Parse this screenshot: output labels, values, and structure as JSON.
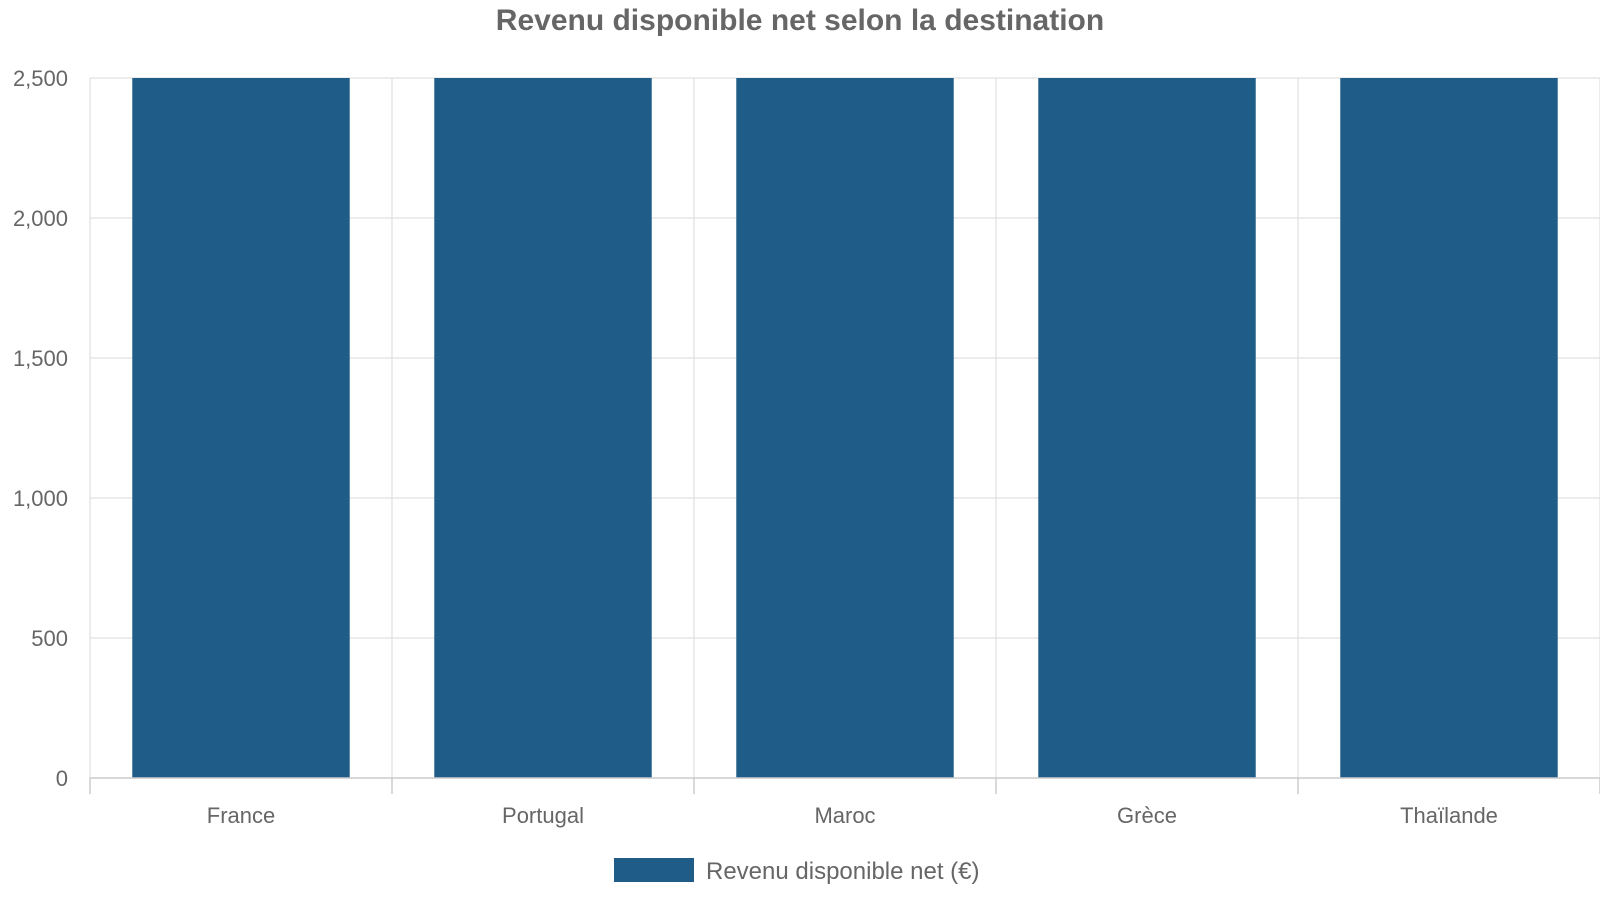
{
  "chart_data": {
    "type": "bar",
    "title": "Revenu disponible net selon la destination",
    "categories": [
      "France",
      "Portugal",
      "Maroc",
      "Grèce",
      "Thaïlande"
    ],
    "series": [
      {
        "name": "Revenu disponible net (€)",
        "values": [
          2500,
          2500,
          2500,
          2500,
          2500
        ],
        "color": "#1f5c87"
      }
    ],
    "ylim": [
      0,
      2500
    ],
    "yticks": [
      "0",
      "500",
      "1,000",
      "1,500",
      "2,000",
      "2,500"
    ],
    "ytick_values": [
      0,
      500,
      1000,
      1500,
      2000,
      2500
    ],
    "grid": true,
    "legend_position": "bottom"
  }
}
